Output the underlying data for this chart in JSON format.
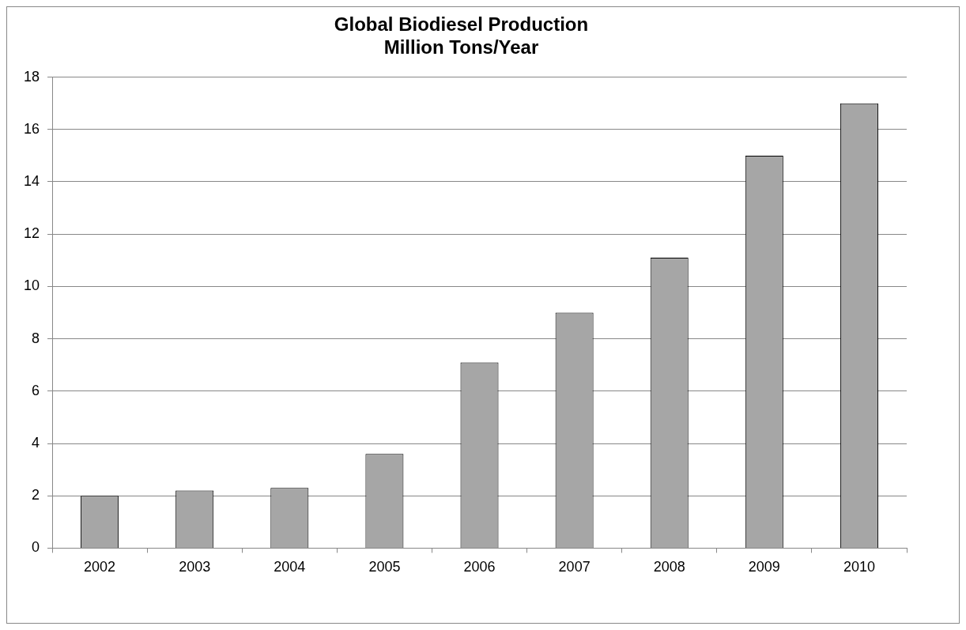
{
  "chart_data": {
    "type": "bar",
    "title": "Global Biodiesel Production\nMillion Tons/Year",
    "categories": [
      "2002",
      "2003",
      "2004",
      "2005",
      "2006",
      "2007",
      "2008",
      "2009",
      "2010"
    ],
    "values": [
      2.0,
      2.2,
      2.3,
      3.6,
      7.1,
      9.0,
      11.1,
      15.0,
      17.0
    ],
    "color": "#a6a6a6",
    "ylim": [
      0,
      18
    ],
    "yticks": [
      0,
      2,
      4,
      6,
      8,
      10,
      12,
      14,
      16,
      18
    ],
    "grid": "y"
  }
}
